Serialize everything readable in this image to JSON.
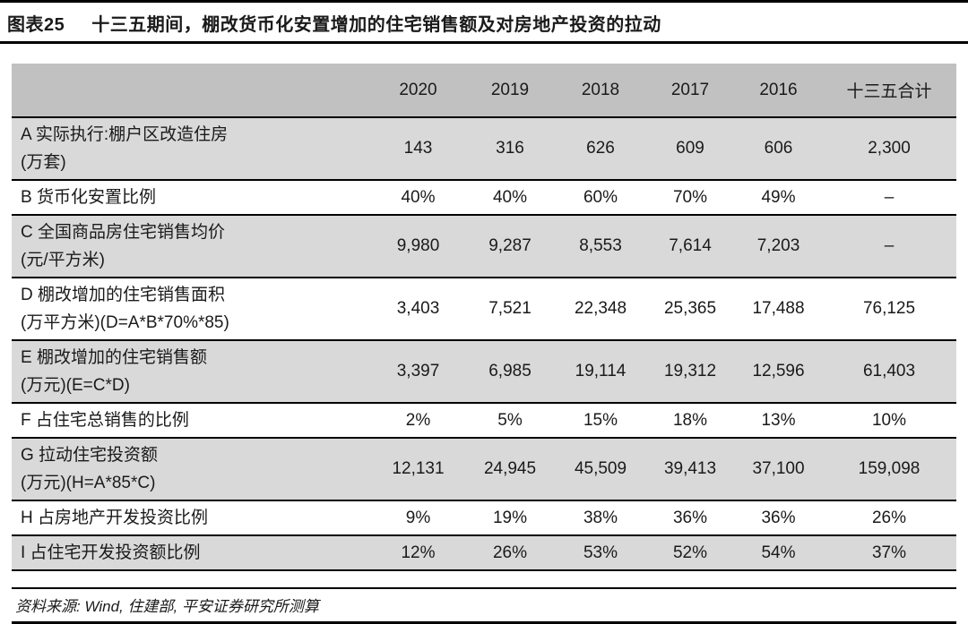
{
  "title": {
    "tag": "图表25",
    "text": "十三五期间，棚改货币化安置增加的住宅销售额及对房地产投资的拉动"
  },
  "chart_data": {
    "type": "table",
    "title": "十三五期间，棚改货币化安置增加的住宅销售额及对房地产投资的拉动",
    "columns": [
      "",
      "2020",
      "2019",
      "2018",
      "2017",
      "2016",
      "十三五合计"
    ],
    "rows": [
      {
        "label_line1": "A 实际执行:棚户区改造住房",
        "label_line2": "(万套)",
        "shaded": true,
        "values": [
          "143",
          "316",
          "626",
          "609",
          "606",
          "2,300"
        ]
      },
      {
        "label_line1": "B 货币化安置比例",
        "label_line2": "",
        "shaded": false,
        "values": [
          "40%",
          "40%",
          "60%",
          "70%",
          "49%",
          "–"
        ]
      },
      {
        "label_line1": "C 全国商品房住宅销售均价",
        "label_line2": "(元/平方米)",
        "shaded": true,
        "values": [
          "9,980",
          "9,287",
          "8,553",
          "7,614",
          "7,203",
          "–"
        ]
      },
      {
        "label_line1": "D 棚改增加的住宅销售面积",
        "label_line2": "(万平方米)(D=A*B*70%*85)",
        "shaded": false,
        "values": [
          "3,403",
          "7,521",
          "22,348",
          "25,365",
          "17,488",
          "76,125"
        ]
      },
      {
        "label_line1": "E 棚改增加的住宅销售额",
        "label_line2": "(万元)(E=C*D)",
        "shaded": true,
        "values": [
          "3,397",
          "6,985",
          "19,114",
          "19,312",
          "12,596",
          "61,403"
        ]
      },
      {
        "label_line1": "F 占住宅总销售的比例",
        "label_line2": "",
        "shaded": false,
        "values": [
          "2%",
          "5%",
          "15%",
          "18%",
          "13%",
          "10%"
        ]
      },
      {
        "label_line1": "G 拉动住宅投资额",
        "label_line2": "(万元)(H=A*85*C)",
        "shaded": true,
        "values": [
          "12,131",
          "24,945",
          "45,509",
          "39,413",
          "37,100",
          "159,098"
        ]
      },
      {
        "label_line1": "H 占房地产开发投资比例",
        "label_line2": "",
        "shaded": false,
        "values": [
          "9%",
          "19%",
          "38%",
          "36%",
          "36%",
          "26%"
        ]
      },
      {
        "label_line1": "I 占住宅开发投资额比例",
        "label_line2": "",
        "shaded": true,
        "values": [
          "12%",
          "26%",
          "53%",
          "52%",
          "54%",
          "37%"
        ]
      }
    ]
  },
  "footer": {
    "source": "资料来源: Wind, 住建部, 平安证券研究所测算"
  },
  "colors": {
    "header_bg": "#c1c1c1",
    "row_shaded_bg": "#d9d9d9",
    "border": "#000000",
    "text": "#1a1a1a"
  }
}
